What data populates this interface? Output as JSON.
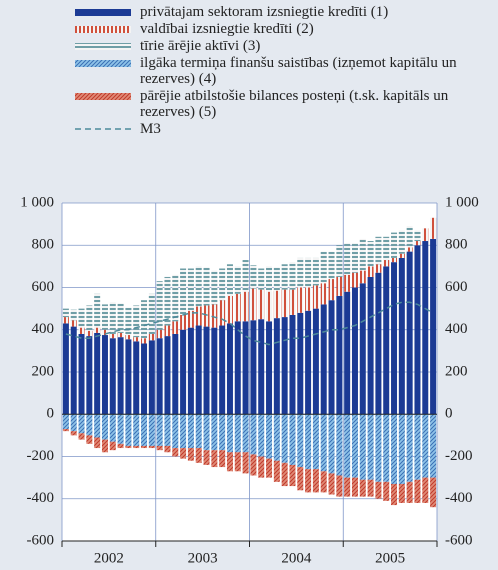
{
  "chart_data": {
    "type": "stacked-bar",
    "categories": [
      null,
      null,
      null,
      null,
      null,
      null,
      null,
      null,
      null,
      null,
      null,
      null,
      null,
      null,
      null,
      null,
      null,
      null,
      null,
      null,
      null,
      null,
      null,
      null,
      null,
      null,
      null,
      null,
      null,
      null,
      null,
      null,
      null,
      null,
      null,
      null,
      null,
      null,
      null,
      null,
      null,
      null,
      null,
      null,
      null,
      null,
      null,
      null
    ],
    "year_groups": [
      {
        "label": "2002",
        "count": 12
      },
      {
        "label": "2003",
        "count": 12
      },
      {
        "label": "2004",
        "count": 12
      },
      {
        "label": "2005",
        "count": 12
      }
    ],
    "series": [
      {
        "name": "privātajam sektoram izsniegtie kredīti (1)",
        "color": "#1b3a94",
        "fill_style": "solid",
        "values": [
          430,
          415,
          380,
          370,
          385,
          375,
          360,
          365,
          355,
          345,
          335,
          350,
          360,
          370,
          380,
          400,
          410,
          420,
          415,
          410,
          420,
          430,
          440,
          440,
          445,
          450,
          440,
          455,
          460,
          470,
          480,
          490,
          500,
          520,
          540,
          560,
          580,
          600,
          620,
          650,
          670,
          700,
          720,
          740,
          770,
          800,
          820,
          830
        ]
      },
      {
        "name": "valdībai izsniegtie kredīti (2)",
        "color": "#d0503c",
        "fill_style": "vertical-stripes",
        "values": [
          30,
          30,
          30,
          25,
          25,
          25,
          20,
          20,
          20,
          20,
          25,
          30,
          40,
          50,
          60,
          70,
          80,
          90,
          100,
          110,
          120,
          130,
          130,
          140,
          150,
          140,
          140,
          130,
          130,
          120,
          120,
          110,
          110,
          100,
          100,
          90,
          80,
          70,
          60,
          50,
          40,
          30,
          20,
          20,
          20,
          20,
          60,
          100
        ]
      },
      {
        "name": "tīrie ārējie aktīvi (3)",
        "color": "#6f9ea6",
        "fill_style": "horizontal-stripes",
        "values": [
          40,
          50,
          90,
          120,
          160,
          120,
          150,
          140,
          130,
          150,
          180,
          190,
          230,
          230,
          220,
          220,
          200,
          190,
          180,
          160,
          150,
          150,
          130,
          150,
          110,
          100,
          120,
          110,
          120,
          130,
          140,
          140,
          130,
          150,
          130,
          150,
          150,
          140,
          150,
          120,
          130,
          110,
          120,
          110,
          100,
          50,
          0,
          0
        ]
      },
      {
        "name": "ilgāka termiņa finanšu saistības (izņemot kapitālu un rezerves) (4)",
        "color": "#8ec3e8",
        "fill_style": "diagonal-stripes",
        "values": [
          -70,
          -80,
          -90,
          -100,
          -110,
          -120,
          -130,
          -140,
          -150,
          -150,
          -150,
          -150,
          -150,
          -150,
          -160,
          -160,
          -160,
          -160,
          -170,
          -170,
          -170,
          -180,
          -180,
          -180,
          -190,
          -200,
          -210,
          -220,
          -230,
          -240,
          -250,
          -260,
          -260,
          -270,
          -280,
          -290,
          -300,
          -300,
          -310,
          -310,
          -320,
          -320,
          -330,
          -330,
          -320,
          -310,
          -300,
          -300
        ]
      },
      {
        "name": "pārējie atbilstošie bilances posteņi (t.sk. kapitāls un rezerves) (5)",
        "color": "#e08a76",
        "fill_style": "diagonal-stripes",
        "values": [
          -10,
          -20,
          -30,
          -40,
          -50,
          -60,
          -40,
          -20,
          -10,
          -10,
          -10,
          -10,
          -20,
          -30,
          -40,
          -50,
          -60,
          -70,
          -70,
          -80,
          -80,
          -90,
          -90,
          -100,
          -100,
          -100,
          -90,
          -100,
          -110,
          -100,
          -110,
          -110,
          -110,
          -100,
          -100,
          -100,
          -90,
          -90,
          -80,
          -80,
          -80,
          -90,
          -100,
          -90,
          -100,
          -110,
          -120,
          -140
        ]
      },
      {
        "name": "M3",
        "color": "#4d8a9a",
        "type": "line",
        "values": [
          380,
          370,
          360,
          360,
          370,
          380,
          390,
          400,
          400,
          410,
          420,
          430,
          440,
          450,
          460,
          470,
          480,
          480,
          470,
          460,
          450,
          430,
          400,
          370,
          350,
          340,
          330,
          340,
          350,
          360,
          360,
          370,
          380,
          390,
          400,
          400,
          410,
          420,
          440,
          460,
          480,
          500,
          520,
          530,
          530,
          520,
          500,
          480
        ]
      }
    ],
    "ylim": [
      -600,
      1000
    ],
    "yticks": [
      -600,
      -400,
      -200,
      0,
      200,
      400,
      600,
      800,
      {
        "value": 1000,
        "label": "1 000"
      }
    ],
    "grid": true
  }
}
